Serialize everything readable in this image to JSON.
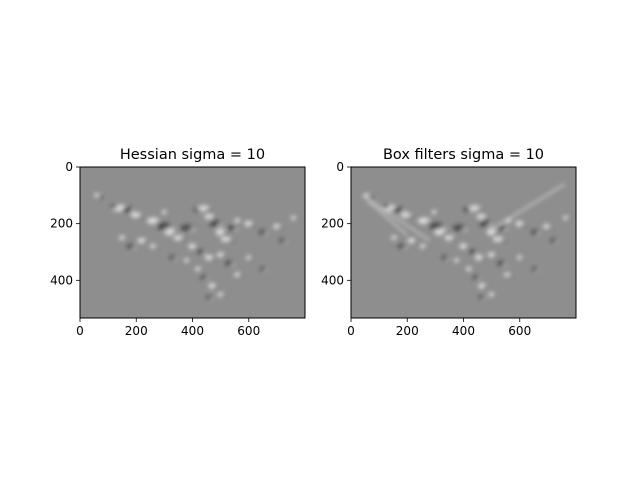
{
  "chart_data": [
    {
      "type": "heatmap",
      "title": "Hessian sigma = 10",
      "xlabel": "",
      "ylabel": "",
      "xlim": [
        0,
        800
      ],
      "ylim": [
        533,
        0
      ],
      "xticks": [
        0,
        200,
        400,
        600
      ],
      "yticks": [
        0,
        200,
        400
      ],
      "colormap": "gray",
      "grid": false,
      "content": "filter response image, mid-gray background with bright/dark blob features"
    },
    {
      "type": "heatmap",
      "title": "Box filters sigma = 10",
      "xlabel": "",
      "ylabel": "",
      "xlim": [
        0,
        800
      ],
      "ylim": [
        533,
        0
      ],
      "xticks": [
        0,
        200,
        400,
        600
      ],
      "yticks": [
        0,
        200,
        400
      ],
      "colormap": "gray",
      "grid": false,
      "content": "filter response image, mid-gray background with bright/dark blob features"
    }
  ],
  "colors": {
    "background": "#8e8e8e",
    "bright": "#f4f4f4",
    "dark": "#1a1a1a"
  }
}
